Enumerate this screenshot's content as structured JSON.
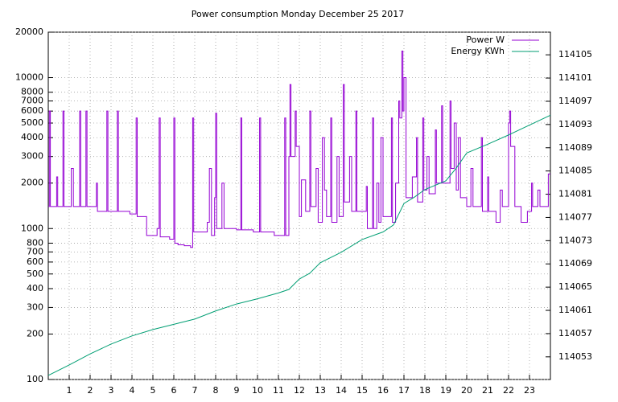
{
  "chart_data": {
    "type": "line",
    "title": "Power consumption Monday December 25 2017",
    "xlim": [
      0,
      24
    ],
    "xticks": [
      1,
      2,
      3,
      4,
      5,
      6,
      7,
      8,
      9,
      10,
      11,
      12,
      13,
      14,
      15,
      16,
      17,
      18,
      19,
      20,
      21,
      22,
      23
    ],
    "ylim": [
      100,
      20000
    ],
    "ylog": true,
    "yticks": [
      100,
      200,
      300,
      400,
      500,
      600,
      700,
      800,
      1000,
      2000,
      3000,
      4000,
      5000,
      6000,
      7000,
      8000,
      10000,
      20000
    ],
    "y2lim": [
      114049.1,
      114108.9
    ],
    "y2ticks": [
      114053,
      114057,
      114061,
      114065,
      114069,
      114073,
      114077,
      114081,
      114085,
      114089,
      114093,
      114097,
      114101,
      114105
    ],
    "grid": true,
    "legend": "top-right",
    "series": [
      {
        "name": "Power W",
        "color": "#9400d3",
        "step": true,
        "x": [
          0,
          0.05,
          0.1,
          0.4,
          0.45,
          0.7,
          0.75,
          1.1,
          1.2,
          1.5,
          1.55,
          1.8,
          1.85,
          2.3,
          2.35,
          2.8,
          2.85,
          3.3,
          3.35,
          3.9,
          4.2,
          4.25,
          4.7,
          5.2,
          5.3,
          5.35,
          5.8,
          6.0,
          6.05,
          6.2,
          6.5,
          6.8,
          6.9,
          6.95,
          7.6,
          7.7,
          7.8,
          7.95,
          8.0,
          8.05,
          8.3,
          8.4,
          9.0,
          9.2,
          9.25,
          9.8,
          10.1,
          10.15,
          10.8,
          11.3,
          11.35,
          11.5,
          11.55,
          11.6,
          11.8,
          11.85,
          12.0,
          12.1,
          12.3,
          12.5,
          12.55,
          12.8,
          12.9,
          13.1,
          13.2,
          13.3,
          13.5,
          13.55,
          13.8,
          13.9,
          14.1,
          14.15,
          14.4,
          14.5,
          14.7,
          14.75,
          15.2,
          15.25,
          15.5,
          15.55,
          15.7,
          15.8,
          15.9,
          16.0,
          16.4,
          16.45,
          16.6,
          16.75,
          16.8,
          16.9,
          16.95,
          17.0,
          17.1,
          17.4,
          17.6,
          17.65,
          17.9,
          17.95,
          18.1,
          18.2,
          18.5,
          18.55,
          18.8,
          18.85,
          19.2,
          19.25,
          19.4,
          19.5,
          19.6,
          19.7,
          20.0,
          20.2,
          20.3,
          20.7,
          20.75,
          21.0,
          21.05,
          21.4,
          21.6,
          21.7,
          22.0,
          22.05,
          22.1,
          22.3,
          22.6,
          22.9,
          23.1,
          23.15,
          23.4,
          23.5,
          23.9,
          24
        ],
        "values": [
          1400,
          6000,
          1400,
          2200,
          1400,
          6000,
          1400,
          2500,
          1400,
          6000,
          1400,
          6000,
          1400,
          2000,
          1300,
          6000,
          1300,
          6000,
          1300,
          1250,
          5400,
          1200,
          900,
          1000,
          5400,
          880,
          850,
          5400,
          800,
          780,
          770,
          750,
          5400,
          950,
          1100,
          2500,
          900,
          1600,
          5800,
          1000,
          2000,
          1000,
          980,
          5400,
          980,
          950,
          5400,
          950,
          900,
          5400,
          900,
          3000,
          9000,
          3000,
          6000,
          3500,
          1200,
          2100,
          1300,
          6000,
          1400,
          2500,
          1100,
          4000,
          1800,
          1200,
          5400,
          1100,
          3000,
          1200,
          9000,
          1500,
          3000,
          1300,
          6000,
          1300,
          1900,
          1000,
          5400,
          1000,
          2000,
          1100,
          4000,
          1200,
          5400,
          1100,
          2000,
          7000,
          5400,
          15000,
          6000,
          10000,
          1600,
          2200,
          4000,
          1500,
          5400,
          1800,
          3000,
          1700,
          4500,
          2000,
          6500,
          2000,
          7000,
          2500,
          5000,
          1800,
          4000,
          1600,
          1400,
          2500,
          1400,
          4000,
          1300,
          2200,
          1300,
          1100,
          1800,
          1400,
          5000,
          6000,
          3500,
          1400,
          1100,
          1300,
          2000,
          1400,
          1800,
          1400,
          2300,
          2300
        ]
      },
      {
        "name": "Energy KWh",
        "color": "#009e73",
        "axis": "y2",
        "x": [
          0,
          1,
          2,
          3,
          4,
          5,
          6,
          7,
          8,
          9,
          10,
          11,
          11.5,
          12,
          12.5,
          13,
          14,
          15,
          16,
          16.5,
          17,
          17.5,
          18,
          19,
          19.5,
          20,
          21,
          22,
          23,
          24
        ],
        "values": [
          114049.8,
          114051.6,
          114053.5,
          114055.2,
          114056.6,
          114057.7,
          114058.6,
          114059.5,
          114060.9,
          114062.1,
          114063.0,
          114064.0,
          114064.6,
          114066.4,
          114067.4,
          114069.2,
          114071.0,
          114073.2,
          114074.5,
          114075.7,
          114079.4,
          114080.5,
          114081.8,
          114083.3,
          114085.5,
          114088.1,
          114089.6,
          114091.2,
          114092.9,
          114094.6
        ]
      }
    ]
  }
}
